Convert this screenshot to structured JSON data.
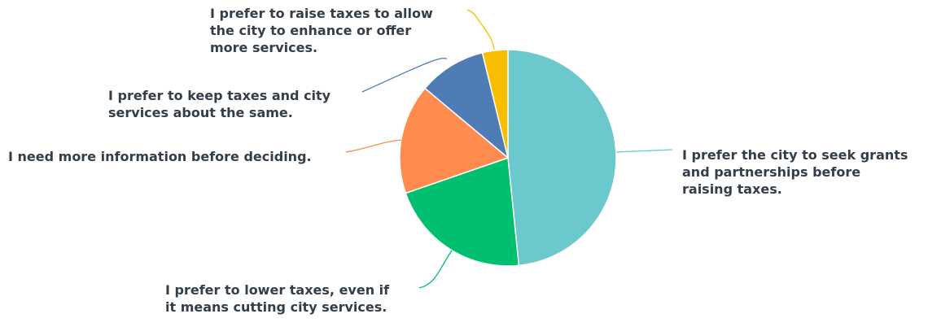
{
  "chart_data": {
    "type": "pie",
    "slices": [
      {
        "label": "I prefer the city to seek grants and partnerships before raising taxes.",
        "label_lines": [
          "I prefer the city to seek grants",
          "and partnerships before",
          "raising taxes."
        ],
        "value": 48.4,
        "color": "#6bc8cd"
      },
      {
        "label": "I prefer to lower taxes, even if it means cutting city services.",
        "label_lines": [
          "I prefer to lower taxes, even if",
          "it means cutting city services."
        ],
        "value": 21.3,
        "color": "#00bf6f"
      },
      {
        "label": "I need more information before deciding.",
        "label_lines": [
          "I need more information before deciding."
        ],
        "value": 16.4,
        "color": "#ff8b4f"
      },
      {
        "label": "I prefer to keep taxes and city services about the same.",
        "label_lines": [
          "I prefer to keep taxes and city",
          "services about the same."
        ],
        "value": 10.1,
        "color": "#507cb6"
      },
      {
        "label": "I prefer to raise taxes to allow the city to enhance or offer more services.",
        "label_lines": [
          "I prefer to raise taxes to allow",
          "the city to enhance or offer",
          "more services."
        ],
        "value": 3.8,
        "color": "#f9be00"
      }
    ]
  }
}
